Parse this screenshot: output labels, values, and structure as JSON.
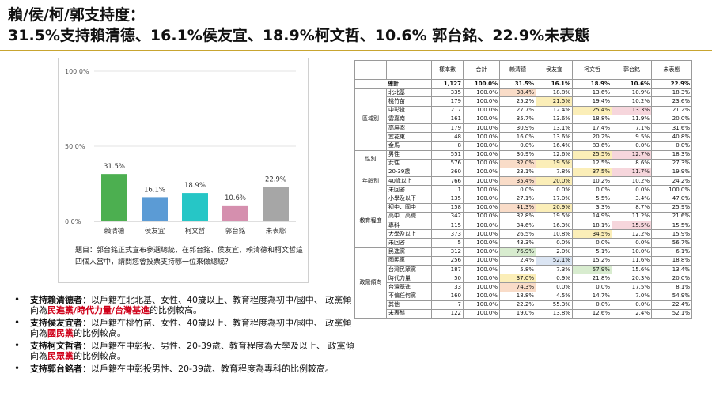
{
  "title": {
    "line1": "賴/侯/柯/郭支持度：",
    "line2": "31.5%支持賴清德、16.1%侯友宜、18.9%柯文哲、10.6% 郭台銘、22.9%未表態"
  },
  "chart_data": {
    "type": "bar",
    "categories": [
      "賴清德",
      "侯友宜",
      "柯文哲",
      "郭台銘",
      "未表態"
    ],
    "values": [
      31.5,
      16.1,
      18.9,
      10.6,
      22.9
    ],
    "value_labels": [
      "31.5%",
      "16.1%",
      "18.9%",
      "10.6%",
      "22.9%"
    ],
    "colors": [
      "#4caf50",
      "#5b9bd5",
      "#26c6c6",
      "#d58fae",
      "#a6a6a6"
    ],
    "yticks": [
      "0.0%",
      "50.0%",
      "100.0%"
    ],
    "ylim": [
      0,
      100
    ],
    "grid": true
  },
  "question": "題目：郭台銘正式宣布參選總統，在郭台銘、侯友宜、賴清德和柯文哲這四個人當中，請問您會投票支持哪一位來做總統？",
  "notes": [
    {
      "lead": "支持賴清德者",
      "a": "：以戶籍在北北基、女性、40歲以上、教育程度為初中/國中、 政黨傾向為",
      "red": "民進黨/時代力量/台灣基進",
      "b": "的比例較高。"
    },
    {
      "lead": "支持侯友宜者",
      "a": "：以戶籍在桃竹苗、女性、40歲以上、教育程度為初中/國中、 政黨傾向為",
      "red": "國民黨",
      "b": "的比例較高。"
    },
    {
      "lead": "支持柯文哲者",
      "a": "：以戶籍在中彰投、男性、20-39歲、教育程度為大學及以上、 政黨傾向為",
      "red": "民眾黨",
      "b": "的比例較高。"
    },
    {
      "lead": "支持郭台銘者",
      "a": "：以戶籍在中彰投男性、20-39歲、教育程度為專科的比例較高。",
      "red": "",
      "b": ""
    }
  ],
  "table": {
    "headers": [
      "",
      "",
      "樣本數",
      "合計",
      "賴清德",
      "侯友宜",
      "柯文哲",
      "郭台銘",
      "未表態"
    ],
    "total": {
      "label": "總計",
      "cells": [
        "1,127",
        "100.0%",
        "31.5%",
        "16.1%",
        "18.9%",
        "10.6%",
        "22.9%"
      ]
    },
    "groups": [
      {
        "name": "區域別",
        "rows": [
          {
            "label": "北北基",
            "cells": [
              "335",
              "100.0%",
              "38.4%",
              "18.8%",
              "13.6%",
              "10.9%",
              "18.3%"
            ],
            "hl": [
              null,
              null,
              "o",
              null,
              null,
              null,
              null
            ]
          },
          {
            "label": "桃竹苗",
            "cells": [
              "179",
              "100.0%",
              "25.2%",
              "21.5%",
              "19.4%",
              "10.2%",
              "23.6%"
            ],
            "hl": [
              null,
              null,
              null,
              "y",
              null,
              null,
              null
            ]
          },
          {
            "label": "中彰投",
            "cells": [
              "217",
              "100.0%",
              "27.7%",
              "12.4%",
              "25.4%",
              "13.3%",
              "21.2%"
            ],
            "hl": [
              null,
              null,
              null,
              null,
              "y",
              "p",
              null
            ]
          },
          {
            "label": "雲嘉南",
            "cells": [
              "161",
              "100.0%",
              "35.7%",
              "13.6%",
              "18.8%",
              "11.9%",
              "20.0%"
            ],
            "hl": [
              null,
              null,
              null,
              null,
              null,
              null,
              null
            ]
          },
          {
            "label": "高屏澎",
            "cells": [
              "179",
              "100.0%",
              "30.9%",
              "13.1%",
              "17.4%",
              "7.1%",
              "31.6%"
            ],
            "hl": [
              null,
              null,
              null,
              null,
              null,
              null,
              null
            ]
          },
          {
            "label": "宜花東",
            "cells": [
              "48",
              "100.0%",
              "16.0%",
              "13.6%",
              "20.2%",
              "9.5%",
              "40.8%"
            ],
            "hl": [
              null,
              null,
              null,
              null,
              null,
              null,
              null
            ]
          },
          {
            "label": "金馬",
            "cells": [
              "8",
              "100.0%",
              "0.0%",
              "16.4%",
              "83.6%",
              "0.0%",
              "0.0%"
            ],
            "hl": [
              null,
              null,
              null,
              null,
              null,
              null,
              null
            ]
          }
        ]
      },
      {
        "name": "性別",
        "rows": [
          {
            "label": "男性",
            "cells": [
              "551",
              "100.0%",
              "30.9%",
              "12.6%",
              "25.5%",
              "12.7%",
              "18.3%"
            ],
            "hl": [
              null,
              null,
              null,
              null,
              "y",
              "p",
              null
            ]
          },
          {
            "label": "女性",
            "cells": [
              "576",
              "100.0%",
              "32.0%",
              "19.5%",
              "12.5%",
              "8.6%",
              "27.3%"
            ],
            "hl": [
              null,
              null,
              "o",
              "y",
              null,
              null,
              null
            ]
          }
        ]
      },
      {
        "name": "年齡別",
        "rows": [
          {
            "label": "20-39歲",
            "cells": [
              "360",
              "100.0%",
              "23.1%",
              "7.8%",
              "37.5%",
              "11.7%",
              "19.9%"
            ],
            "hl": [
              null,
              null,
              null,
              null,
              "y",
              "p",
              null
            ]
          },
          {
            "label": "40歲以上",
            "cells": [
              "766",
              "100.0%",
              "35.4%",
              "20.0%",
              "10.2%",
              "10.2%",
              "24.2%"
            ],
            "hl": [
              null,
              null,
              "o",
              "y",
              null,
              null,
              null
            ]
          },
          {
            "label": "未回答",
            "cells": [
              "1",
              "100.0%",
              "0.0%",
              "0.0%",
              "0.0%",
              "0.0%",
              "100.0%"
            ],
            "hl": [
              null,
              null,
              null,
              null,
              null,
              null,
              null
            ]
          }
        ]
      },
      {
        "name": "教育程度",
        "rows": [
          {
            "label": "小學及以下",
            "cells": [
              "135",
              "100.0%",
              "27.1%",
              "17.0%",
              "5.5%",
              "3.4%",
              "47.0%"
            ],
            "hl": [
              null,
              null,
              null,
              null,
              null,
              null,
              null
            ]
          },
          {
            "label": "初中．國中",
            "cells": [
              "158",
              "100.0%",
              "41.3%",
              "20.9%",
              "3.3%",
              "8.7%",
              "25.9%"
            ],
            "hl": [
              null,
              null,
              "o",
              "y",
              null,
              null,
              null
            ]
          },
          {
            "label": "高中．高職",
            "cells": [
              "342",
              "100.0%",
              "32.8%",
              "19.5%",
              "14.9%",
              "11.2%",
              "21.6%"
            ],
            "hl": [
              null,
              null,
              null,
              null,
              null,
              null,
              null
            ]
          },
          {
            "label": "專科",
            "cells": [
              "115",
              "100.0%",
              "34.6%",
              "16.3%",
              "18.1%",
              "15.5%",
              "15.5%"
            ],
            "hl": [
              null,
              null,
              null,
              null,
              null,
              "p",
              null
            ]
          },
          {
            "label": "大學及以上",
            "cells": [
              "373",
              "100.0%",
              "26.5%",
              "10.8%",
              "34.5%",
              "12.2%",
              "15.9%"
            ],
            "hl": [
              null,
              null,
              null,
              null,
              "y",
              null,
              null
            ]
          },
          {
            "label": "未回答",
            "cells": [
              "5",
              "100.0%",
              "43.3%",
              "0.0%",
              "0.0%",
              "0.0%",
              "56.7%"
            ],
            "hl": [
              null,
              null,
              null,
              null,
              null,
              null,
              null
            ]
          }
        ]
      },
      {
        "name": "政黨傾向",
        "rows": [
          {
            "label": "民進黨",
            "cells": [
              "312",
              "100.0%",
              "76.9%",
              "2.0%",
              "5.1%",
              "10.0%",
              "6.1%"
            ],
            "hl": [
              null,
              null,
              "g",
              null,
              null,
              null,
              null
            ]
          },
          {
            "label": "國民黨",
            "cells": [
              "256",
              "100.0%",
              "2.4%",
              "52.1%",
              "15.2%",
              "11.6%",
              "18.8%"
            ],
            "hl": [
              null,
              null,
              null,
              "b",
              null,
              null,
              null
            ]
          },
          {
            "label": "台灣民眾黨",
            "cells": [
              "187",
              "100.0%",
              "5.8%",
              "7.3%",
              "57.9%",
              "15.6%",
              "13.4%"
            ],
            "hl": [
              null,
              null,
              null,
              null,
              "g",
              null,
              null
            ]
          },
          {
            "label": "時代力量",
            "cells": [
              "50",
              "100.0%",
              "37.0%",
              "0.9%",
              "21.8%",
              "20.3%",
              "20.0%"
            ],
            "hl": [
              null,
              null,
              "y",
              null,
              null,
              null,
              null
            ]
          },
          {
            "label": "台灣基進",
            "cells": [
              "33",
              "100.0%",
              "74.3%",
              "0.0%",
              "0.0%",
              "17.5%",
              "8.1%"
            ],
            "hl": [
              null,
              null,
              "o",
              null,
              null,
              null,
              null
            ]
          },
          {
            "label": "不偏任何黨",
            "cells": [
              "160",
              "100.0%",
              "18.8%",
              "4.5%",
              "14.7%",
              "7.0%",
              "54.9%"
            ],
            "hl": [
              null,
              null,
              null,
              null,
              null,
              null,
              null
            ]
          },
          {
            "label": "其他",
            "cells": [
              "7",
              "100.0%",
              "22.2%",
              "55.3%",
              "0.0%",
              "0.0%",
              "22.4%"
            ],
            "hl": [
              null,
              null,
              null,
              null,
              null,
              null,
              null
            ]
          },
          {
            "label": "未表態",
            "cells": [
              "122",
              "100.0%",
              "19.0%",
              "13.8%",
              "12.6%",
              "2.4%",
              "52.1%"
            ],
            "hl": [
              null,
              null,
              null,
              null,
              null,
              null,
              null
            ]
          }
        ]
      }
    ]
  }
}
